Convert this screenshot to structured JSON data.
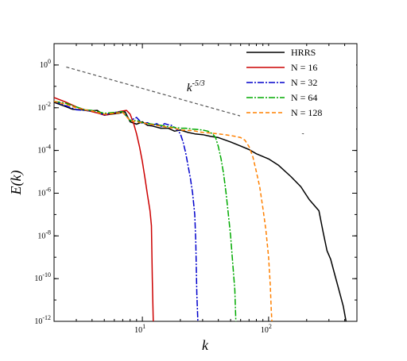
{
  "chart_data": {
    "type": "line",
    "title": "",
    "xlabel": "k",
    "ylabel": "E(k)",
    "x_scale": "log",
    "y_scale": "log",
    "xlim": [
      2,
      500
    ],
    "ylim": [
      1e-12,
      10
    ],
    "grid": false,
    "legend_position": "top-right",
    "x_ticks": [
      {
        "value": 10,
        "label": "10",
        "exp": "1"
      },
      {
        "value": 100,
        "label": "10",
        "exp": "2"
      }
    ],
    "y_ticks": [
      {
        "value": 1,
        "label": "10",
        "exp": "0"
      },
      {
        "value": 0.01,
        "label": "10",
        "exp": "-2"
      },
      {
        "value": 0.0001,
        "label": "10",
        "exp": "-4"
      },
      {
        "value": 1e-06,
        "label": "10",
        "exp": "-6"
      },
      {
        "value": 1e-08,
        "label": "10",
        "exp": "-8"
      },
      {
        "value": 1e-10,
        "label": "10",
        "exp": "-10"
      },
      {
        "value": 1e-12,
        "label": "10",
        "exp": "-12"
      }
    ],
    "annotation": {
      "base": "k",
      "exp": "-5/3",
      "x": 30,
      "y": 0.06
    },
    "reference_line": {
      "x": [
        2.5,
        190
      ],
      "y": [
        0.8,
        0.0006
      ],
      "color": "#555555",
      "dash": "4,3"
    },
    "series": [
      {
        "name": "HRRS",
        "color": "#000000",
        "dash": "",
        "x": [
          2,
          2.4,
          2.8,
          3.3,
          3.8,
          4.4,
          5,
          5.7,
          6.5,
          7.3,
          8,
          9,
          10,
          11,
          12,
          14,
          16,
          18,
          20,
          23,
          26,
          30,
          35,
          40,
          50,
          60,
          70,
          80,
          100,
          120,
          150,
          180,
          210,
          250,
          270,
          290,
          310,
          330,
          360,
          390,
          410,
          430
        ],
        "y": [
          0.018,
          0.012,
          0.0085,
          0.008,
          0.007,
          0.0075,
          0.0045,
          0.005,
          0.0055,
          0.0065,
          0.0022,
          0.0017,
          0.0022,
          0.0015,
          0.0014,
          0.0011,
          0.0011,
          0.0008,
          0.0009,
          0.0007,
          0.0006,
          0.00055,
          0.00045,
          0.0004,
          0.00025,
          0.00016,
          0.00011,
          7e-05,
          4e-05,
          2e-05,
          6e-06,
          2e-06,
          5e-07,
          1.5e-07,
          1.5e-08,
          2e-09,
          8e-10,
          2e-10,
          3e-11,
          5e-12,
          1e-12,
          3e-13
        ]
      },
      {
        "name": "N = 16",
        "color": "#cc0000",
        "dash": "",
        "x": [
          2,
          2.5,
          3,
          3.5,
          4,
          4.5,
          5,
          5.5,
          6,
          6.5,
          7,
          7.5,
          8,
          8.5,
          9,
          9.5,
          10,
          10.5,
          11,
          11.5,
          11.8,
          12.0,
          12.1,
          12.2
        ],
        "y": [
          0.03,
          0.018,
          0.011,
          0.008,
          0.0065,
          0.0055,
          0.0045,
          0.005,
          0.0055,
          0.0065,
          0.007,
          0.0075,
          0.005,
          0.002,
          0.0006,
          0.00015,
          3e-05,
          5e-06,
          8e-07,
          1.5e-07,
          3e-08,
          1e-10,
          1e-11,
          1e-12
        ]
      },
      {
        "name": "N = 32",
        "color": "#0000cc",
        "dash": "8,2,2,2",
        "x": [
          2,
          2.5,
          3,
          3.5,
          4,
          4.5,
          5,
          5.5,
          6,
          7,
          8,
          9,
          10,
          11,
          12,
          13,
          14,
          15,
          16,
          17,
          18,
          19,
          20,
          21,
          22,
          23,
          24,
          25,
          26,
          26.5,
          27,
          27.5
        ],
        "y": [
          0.02,
          0.012,
          0.008,
          0.0075,
          0.007,
          0.006,
          0.0045,
          0.0055,
          0.006,
          0.0065,
          0.0025,
          0.0035,
          0.0018,
          0.002,
          0.0015,
          0.0018,
          0.0013,
          0.0018,
          0.0016,
          0.0015,
          0.0012,
          0.0009,
          0.0006,
          0.00025,
          8e-05,
          2e-05,
          5e-06,
          1e-06,
          1e-07,
          5e-09,
          2e-11,
          1e-12
        ]
      },
      {
        "name": "N = 64",
        "color": "#00aa00",
        "dash": "8,2,2,2",
        "x": [
          2,
          2.5,
          3,
          3.5,
          4,
          5,
          6,
          7,
          8,
          9,
          10,
          12,
          14,
          16,
          18,
          20,
          22,
          25,
          28,
          30,
          33,
          36,
          38,
          40,
          42,
          44,
          46,
          48,
          50,
          52,
          54,
          55,
          56
        ],
        "y": [
          0.02,
          0.016,
          0.011,
          0.008,
          0.0075,
          0.0055,
          0.006,
          0.0065,
          0.0025,
          0.0025,
          0.002,
          0.0017,
          0.0015,
          0.0013,
          0.0012,
          0.0011,
          0.0011,
          0.001,
          0.00095,
          0.0009,
          0.0008,
          0.0006,
          0.0004,
          0.00015,
          4e-05,
          8e-06,
          1e-06,
          1e-07,
          1e-08,
          5e-10,
          3e-11,
          1e-12,
          3e-13
        ]
      },
      {
        "name": "N = 128",
        "color": "#ff8000",
        "dash": "5,3",
        "x": [
          2,
          2.5,
          3,
          3.5,
          4,
          5,
          6,
          7,
          8,
          9,
          10,
          12,
          14,
          16,
          18,
          20,
          25,
          30,
          35,
          40,
          45,
          50,
          55,
          60,
          65,
          70,
          75,
          80,
          85,
          90,
          95,
          100,
          103,
          105,
          107
        ],
        "y": [
          0.02,
          0.014,
          0.01,
          0.008,
          0.007,
          0.005,
          0.0055,
          0.006,
          0.0025,
          0.0022,
          0.002,
          0.0016,
          0.0014,
          0.0012,
          0.0011,
          0.0009,
          0.00085,
          0.0007,
          0.00065,
          0.0006,
          0.00055,
          0.0005,
          0.00045,
          0.0004,
          0.0003,
          0.00015,
          5e-05,
          1e-05,
          2e-06,
          2e-07,
          2e-08,
          1e-09,
          5e-11,
          3e-12,
          5e-13
        ]
      }
    ]
  }
}
